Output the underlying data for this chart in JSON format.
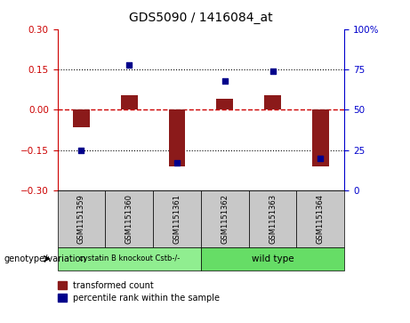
{
  "title": "GDS5090 / 1416084_at",
  "samples": [
    "GSM1151359",
    "GSM1151360",
    "GSM1151361",
    "GSM1151362",
    "GSM1151363",
    "GSM1151364"
  ],
  "transformed_counts": [
    -0.065,
    0.055,
    -0.21,
    0.04,
    0.055,
    -0.21
  ],
  "percentile_ranks": [
    25,
    78,
    17,
    68,
    74,
    20
  ],
  "ylim_left": [
    -0.3,
    0.3
  ],
  "ylim_right": [
    0,
    100
  ],
  "yticks_left": [
    -0.3,
    -0.15,
    0,
    0.15,
    0.3
  ],
  "yticks_right": [
    0,
    25,
    50,
    75,
    100
  ],
  "bar_color": "#8B1A1A",
  "dot_color": "#00008B",
  "zero_line_color": "#CC0000",
  "group1_label": "cystatin B knockout Cstb-/-",
  "group2_label": "wild type",
  "group1_color": "#90EE90",
  "group2_color": "#66DD66",
  "genotype_label": "genotype/variation",
  "legend_bar_label": "transformed count",
  "legend_dot_label": "percentile rank within the sample",
  "group_bg_color": "#C8C8C8"
}
